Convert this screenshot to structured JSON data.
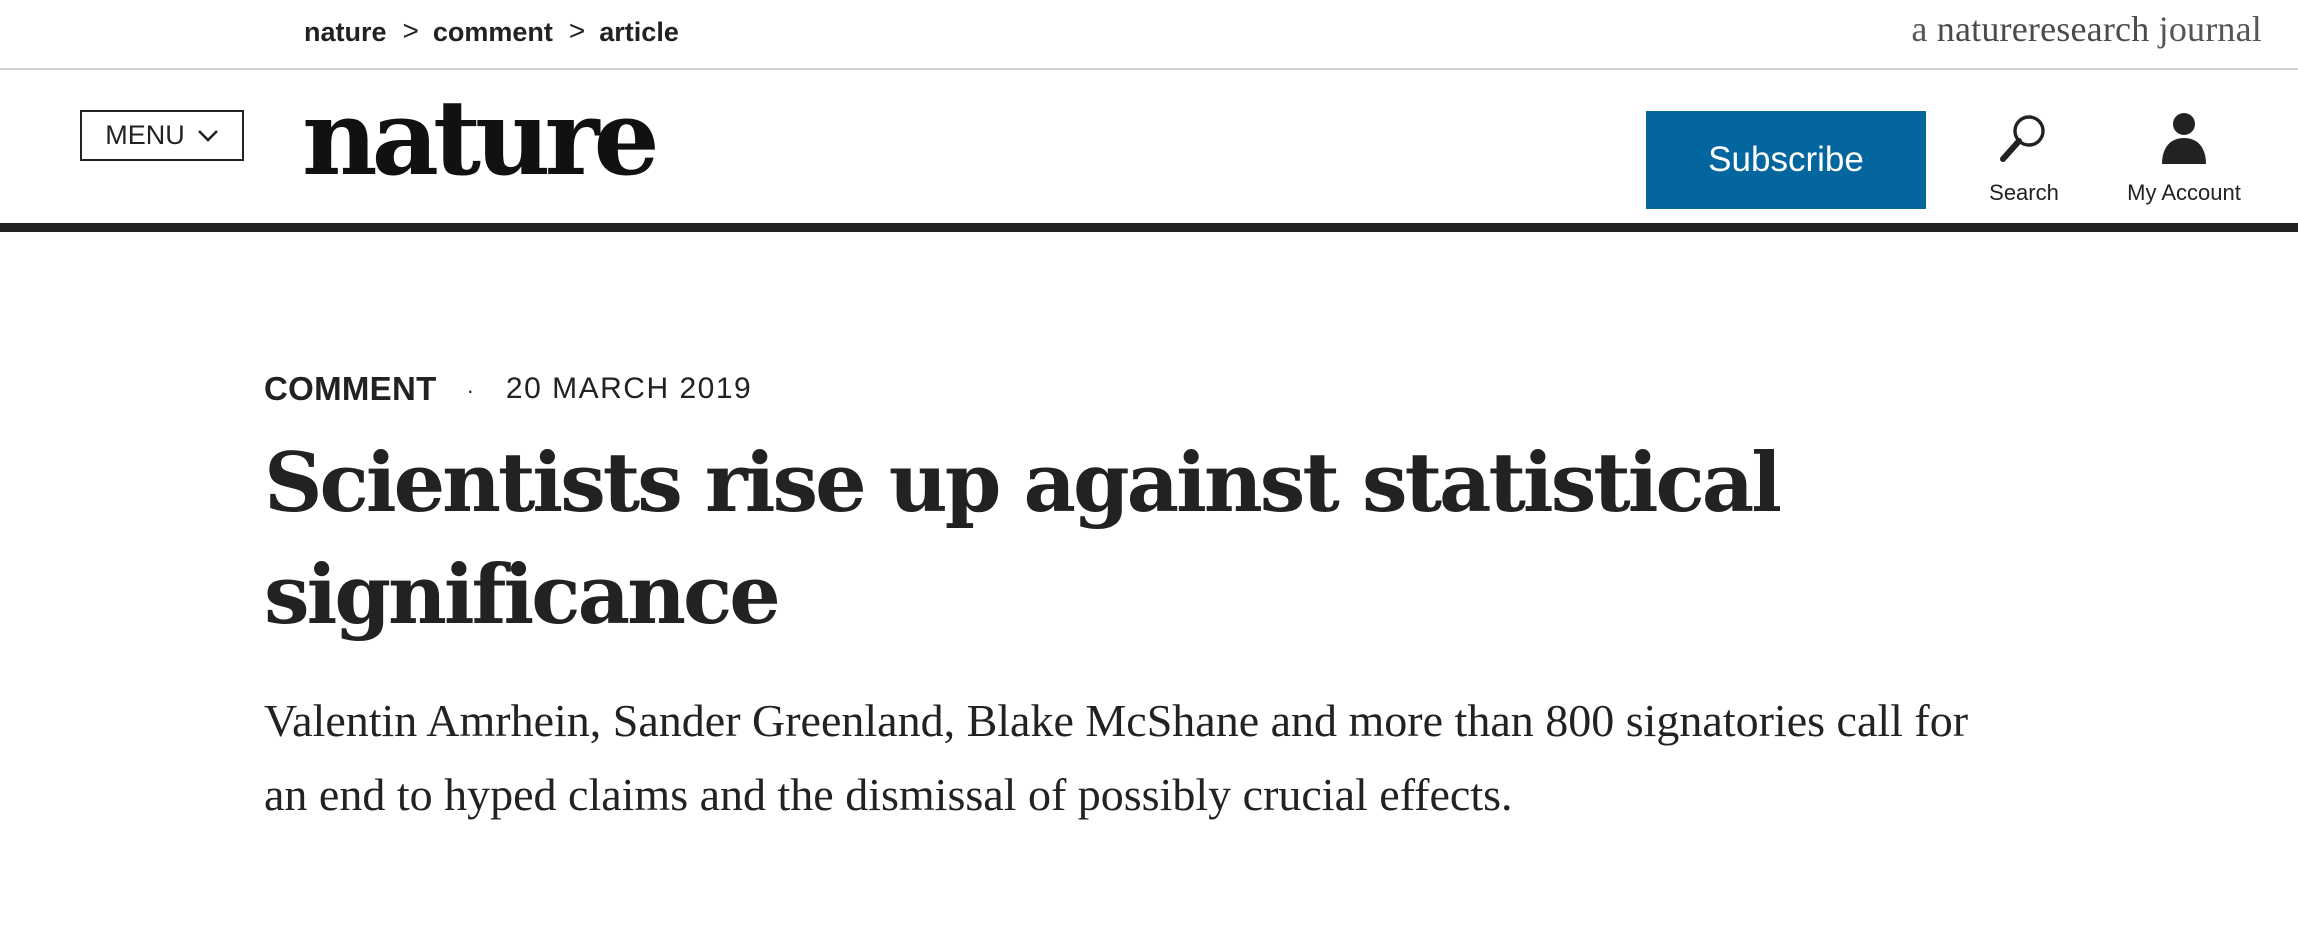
{
  "breadcrumb": {
    "items": [
      "nature",
      "comment",
      "article"
    ],
    "separator": ">"
  },
  "journal_tag": {
    "prefix": "a",
    "brand": "natureresearch",
    "suffix": "journal"
  },
  "header": {
    "menu_label": "MENU",
    "logo_text": "nature",
    "subscribe_label": "Subscribe",
    "search_label": "Search",
    "account_label": "My Account"
  },
  "article": {
    "type": "COMMENT",
    "meta_separator": "·",
    "date": "20 MARCH 2019",
    "title": "Scientists rise up against statistical significance",
    "standfirst": "Valentin Amrhein, Sander Greenland, Blake McShane and more than 800 signatories call for an end to hyped claims and the dismissal of possibly crucial effects."
  },
  "icons": {
    "menu": "chevron-down-icon",
    "search": "search-icon",
    "account": "user-icon"
  },
  "colors": {
    "subscribe_bg": "#04669e",
    "text": "#222222",
    "header_rule": "#222222"
  }
}
